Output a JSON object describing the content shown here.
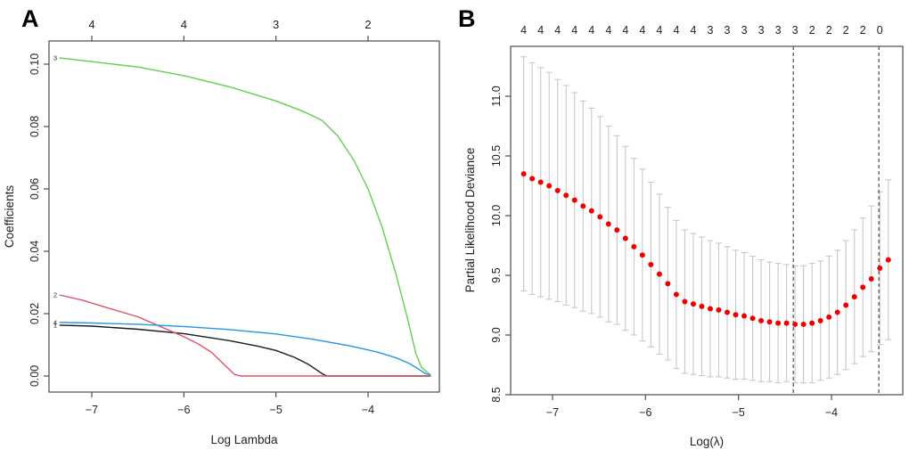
{
  "figure": {
    "background": "#ffffff",
    "axis_color": "#4d4d4d",
    "text_color": "#222222"
  },
  "chart_data": [
    {
      "panel": "A",
      "type": "line",
      "xlabel": "Log Lambda",
      "ylabel": "Coefficients",
      "xlim": [
        -7.46,
        -3.23
      ],
      "ylim": [
        -0.005,
        0.1074
      ],
      "grid": false,
      "x_ticks": {
        "values": [
          -7,
          -6,
          -5,
          -4
        ],
        "labels": [
          "−7",
          "−6",
          "−5",
          "−4"
        ]
      },
      "y_ticks": {
        "values": [
          0,
          0.02,
          0.04,
          0.06,
          0.08,
          0.1
        ],
        "labels": [
          "0.00",
          "0.02",
          "0.04",
          "0.06",
          "0.08",
          "0.10"
        ]
      },
      "top_axis": {
        "values": [
          -7,
          -6,
          -5,
          -4
        ],
        "labels": [
          "4",
          "4",
          "3",
          "2"
        ]
      },
      "series": [
        {
          "name": "variable-1",
          "label": "1",
          "color": "#1a1a1a",
          "points": [
            [
              -7.35,
              0.0163
            ],
            [
              -7.0,
              0.016
            ],
            [
              -6.5,
              0.015
            ],
            [
              -6.0,
              0.0136
            ],
            [
              -5.5,
              0.0113
            ],
            [
              -5.2,
              0.0096
            ],
            [
              -5.0,
              0.0082
            ],
            [
              -4.8,
              0.006
            ],
            [
              -4.65,
              0.0038
            ],
            [
              -4.5,
              0.0008
            ],
            [
              -4.45,
              0.0
            ],
            [
              -3.32,
              0.0
            ]
          ]
        },
        {
          "name": "variable-2",
          "label": "2",
          "color": "#DF536B",
          "points": [
            [
              -7.35,
              0.026
            ],
            [
              -7.1,
              0.0243
            ],
            [
              -6.8,
              0.0216
            ],
            [
              -6.5,
              0.019
            ],
            [
              -6.25,
              0.0158
            ],
            [
              -6.0,
              0.0126
            ],
            [
              -5.85,
              0.0104
            ],
            [
              -5.7,
              0.0076
            ],
            [
              -5.55,
              0.0033
            ],
            [
              -5.45,
              0.0005
            ],
            [
              -5.38,
              0.0
            ],
            [
              -3.32,
              0.0
            ]
          ]
        },
        {
          "name": "variable-3",
          "label": "3",
          "color": "#61D04F",
          "points": [
            [
              -7.35,
              0.102
            ],
            [
              -7.0,
              0.1008
            ],
            [
              -6.5,
              0.0991
            ],
            [
              -6.0,
              0.0963
            ],
            [
              -5.5,
              0.0927
            ],
            [
              -5.0,
              0.0882
            ],
            [
              -4.7,
              0.0848
            ],
            [
              -4.5,
              0.082
            ],
            [
              -4.33,
              0.077
            ],
            [
              -4.15,
              0.069
            ],
            [
              -4.0,
              0.06
            ],
            [
              -3.85,
              0.048
            ],
            [
              -3.7,
              0.033
            ],
            [
              -3.58,
              0.0195
            ],
            [
              -3.48,
              0.0072
            ],
            [
              -3.42,
              0.0028
            ],
            [
              -3.32,
              0.0003
            ]
          ]
        },
        {
          "name": "variable-4",
          "label": "4",
          "color": "#2297E6",
          "points": [
            [
              -7.35,
              0.0172
            ],
            [
              -7.0,
              0.017
            ],
            [
              -6.5,
              0.0166
            ],
            [
              -6.0,
              0.0159
            ],
            [
              -5.5,
              0.0149
            ],
            [
              -5.0,
              0.0135
            ],
            [
              -4.6,
              0.0118
            ],
            [
              -4.2,
              0.0097
            ],
            [
              -3.9,
              0.0077
            ],
            [
              -3.7,
              0.0059
            ],
            [
              -3.55,
              0.004
            ],
            [
              -3.45,
              0.0022
            ],
            [
              -3.38,
              0.0008
            ],
            [
              -3.32,
              0.0003
            ]
          ]
        }
      ]
    },
    {
      "panel": "B",
      "type": "scatter",
      "xlabel": "Log(λ)",
      "ylabel": "Partial Likelihood Deviance",
      "xlim": [
        -7.45,
        -3.23
      ],
      "ylim": [
        8.36,
        11.42
      ],
      "grid": false,
      "x_ticks": {
        "values": [
          -7,
          -6,
          -5,
          -4
        ],
        "labels": [
          "−7",
          "−6",
          "−5",
          "−4"
        ]
      },
      "y_ticks": {
        "values": [
          8.5,
          9.0,
          9.5,
          10.0,
          10.5,
          11.0
        ],
        "labels": [
          "8.5",
          "9.0",
          "9.5",
          "10.0",
          "10.5",
          "11.0"
        ]
      },
      "top_axis_labels": [
        "4",
        "4",
        "4",
        "4",
        "4",
        "4",
        "4",
        "4",
        "4",
        "4",
        "4",
        "3",
        "3",
        "3",
        "3",
        "3",
        "3",
        "2",
        "2",
        "2",
        "2",
        "0"
      ],
      "points": {
        "x_start": -7.31,
        "x_step": 0.0912,
        "values": [
          10.35,
          10.31,
          10.28,
          10.25,
          10.21,
          10.17,
          10.13,
          10.08,
          10.04,
          9.99,
          9.93,
          9.88,
          9.81,
          9.74,
          9.67,
          9.59,
          9.51,
          9.43,
          9.34,
          9.28,
          9.26,
          9.24,
          9.22,
          9.21,
          9.19,
          9.17,
          9.16,
          9.14,
          9.12,
          9.11,
          9.1,
          9.1,
          9.09,
          9.09,
          9.1,
          9.12,
          9.15,
          9.19,
          9.25,
          9.32,
          9.4,
          9.47,
          9.56,
          9.63
        ],
        "se": [
          0.98,
          0.97,
          0.96,
          0.95,
          0.93,
          0.92,
          0.9,
          0.88,
          0.86,
          0.84,
          0.82,
          0.79,
          0.77,
          0.74,
          0.72,
          0.69,
          0.67,
          0.64,
          0.62,
          0.6,
          0.59,
          0.58,
          0.57,
          0.56,
          0.55,
          0.54,
          0.53,
          0.52,
          0.51,
          0.5,
          0.5,
          0.49,
          0.49,
          0.49,
          0.5,
          0.5,
          0.51,
          0.52,
          0.54,
          0.56,
          0.58,
          0.61,
          0.64,
          0.67
        ]
      },
      "vlines": [
        {
          "x": -4.41,
          "name": "lambda-min"
        },
        {
          "x": -3.49,
          "name": "lambda-1se"
        }
      ],
      "point_color": "#ee0000",
      "errorbar_color": "#c8c8c8",
      "vline_color": "#595959"
    }
  ]
}
